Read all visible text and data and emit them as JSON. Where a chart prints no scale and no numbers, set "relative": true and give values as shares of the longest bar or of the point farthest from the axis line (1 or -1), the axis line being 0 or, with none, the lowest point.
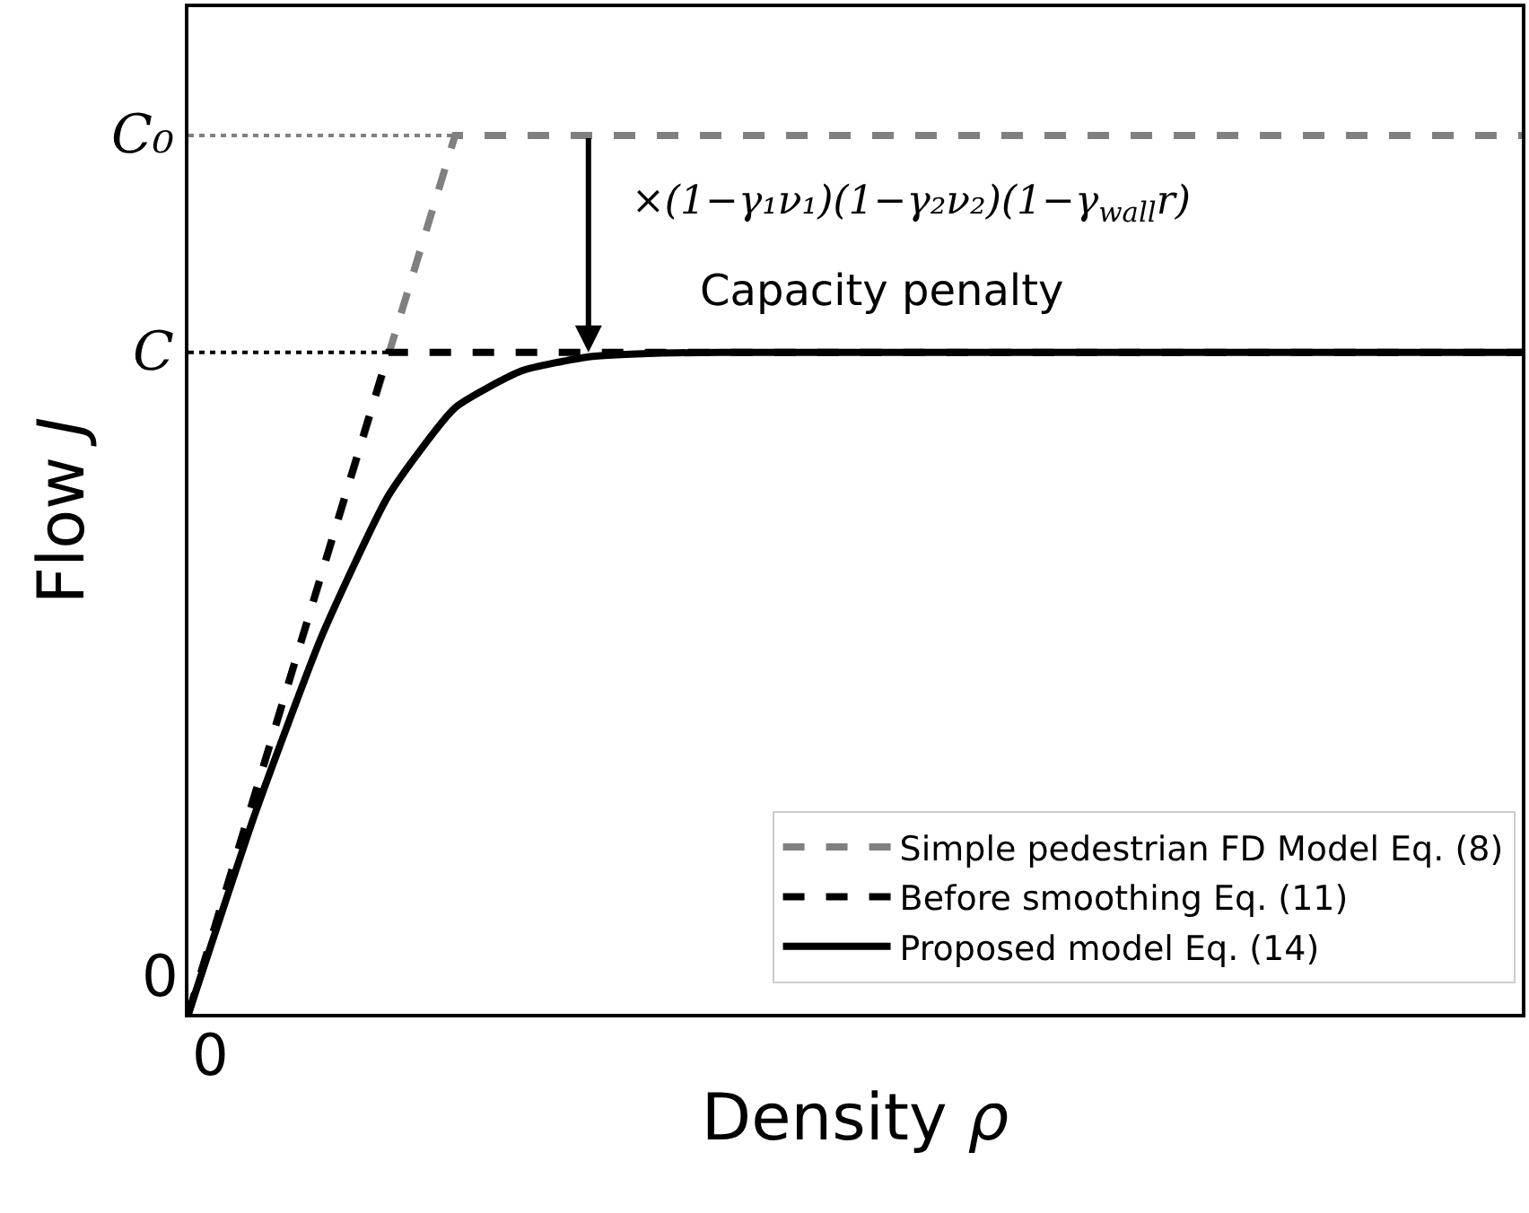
{
  "chart_data": {
    "type": "line",
    "relative": true,
    "xlabel": "Density ρ",
    "ylabel": "Flow J",
    "categories": [
      null,
      null,
      null,
      null,
      null,
      null,
      null,
      null,
      null,
      null,
      null,
      null,
      null,
      null,
      null,
      null,
      null,
      null,
      null,
      null,
      null
    ],
    "series": [
      {
        "name": "Simple pedestrian FD Model Eq. (8)",
        "color": "#808080",
        "line_style": "dashed",
        "values": [
          0,
          0.25,
          0.5,
          0.75,
          1,
          1,
          1,
          1,
          1,
          1,
          1,
          1,
          1,
          1,
          1,
          1,
          1,
          1,
          1,
          1,
          1
        ]
      },
      {
        "name": "Before smoothing Eq. (11)",
        "color": "#000000",
        "line_style": "dashed",
        "values": [
          0,
          0.251,
          0.502,
          0.753,
          0.753,
          0.753,
          0.753,
          0.753,
          0.753,
          0.753,
          0.753,
          0.753,
          0.753,
          0.753,
          0.753,
          0.753,
          0.753,
          0.753,
          0.753,
          0.753,
          0.753
        ]
      },
      {
        "name": "Proposed model Eq. (14)",
        "color": "#000000",
        "line_style": "solid",
        "values": [
          0,
          0.228,
          0.43,
          0.59,
          0.69,
          0.732,
          0.748,
          0.752,
          0.753,
          0.753,
          0.753,
          0.753,
          0.753,
          0.753,
          0.753,
          0.753,
          0.753,
          0.753,
          0.753,
          0.753,
          0.753
        ]
      }
    ],
    "ref_lines": [
      {
        "axis": "y",
        "value": 1,
        "label": "C₀",
        "color": "#808080",
        "line_style": "dotted"
      },
      {
        "axis": "y",
        "value": 0.753,
        "label": "C",
        "color": "#000000",
        "line_style": "dotted"
      }
    ],
    "annotations": [
      "×(1−γ₁ν₁)(1−γ₂ν₂)(1−γ$_{wall}$r)",
      {
        "text": "Capacity penalty",
        "y": 0.753
      },
      "0",
      "0"
    ],
    "legend": "bottom right",
    "marker": "none"
  }
}
